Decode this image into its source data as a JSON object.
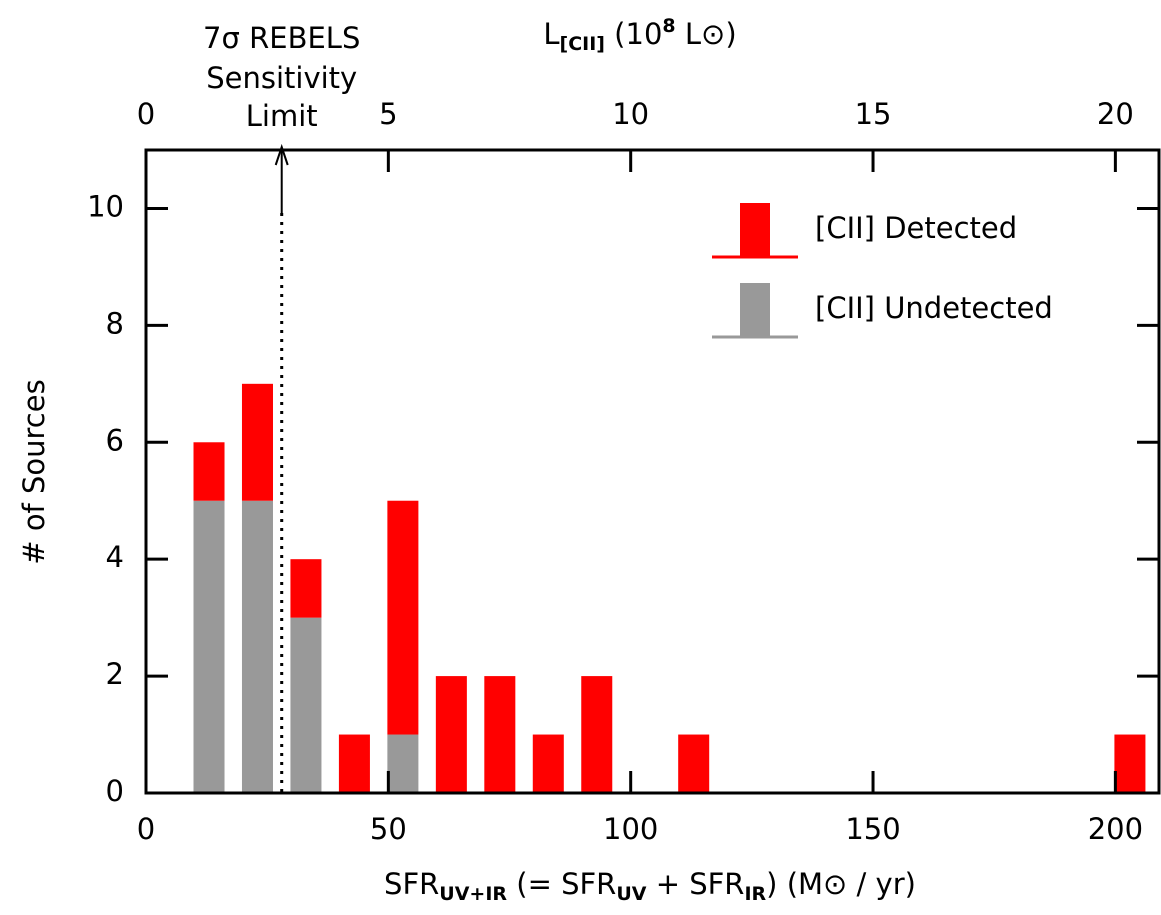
{
  "chart_data": {
    "type": "histogram",
    "bins": [
      8,
      18,
      28,
      38,
      48,
      58,
      68,
      78,
      88,
      98,
      108,
      118,
      128,
      138,
      148,
      158,
      168,
      178,
      188,
      198,
      208
    ],
    "stacked": true,
    "series": [
      {
        "name": "[CII] Detected",
        "color": "#ff0000",
        "values": [
          1,
          2,
          1,
          1,
          4,
          2,
          2,
          1,
          2,
          0,
          1,
          0,
          0,
          0,
          0,
          0,
          0,
          0,
          0,
          1
        ]
      },
      {
        "name": "[CII] Undetected",
        "color": "#999999",
        "values": [
          5,
          5,
          3,
          0,
          1,
          0,
          0,
          0,
          0,
          0,
          0,
          0,
          0,
          0,
          0,
          0,
          0,
          0,
          0,
          0
        ]
      }
    ],
    "xlabel": [
      {
        "text": "SFR"
      },
      {
        "text": "UV+IR",
        "sub": true
      },
      {
        "text": " (= SFR"
      },
      {
        "text": "UV",
        "sub": true
      },
      {
        "text": " + SFR"
      },
      {
        "text": "IR",
        "sub": true
      },
      {
        "text": ") (M⊙ / yr)"
      }
    ],
    "x2label": [
      {
        "text": "L"
      },
      {
        "text": "[CII]",
        "sub": true
      },
      {
        "text": " (10"
      },
      {
        "text": "8",
        "sup": true
      },
      {
        "text": " L⊙)"
      }
    ],
    "ylabel": "# of Sources",
    "xlim": [
      0,
      209
    ],
    "xticks": [
      0,
      50,
      100,
      150,
      200
    ],
    "x2lim": [
      0,
      20.9
    ],
    "x2ticks": [
      0,
      5,
      10,
      15,
      20
    ],
    "ylim": [
      0,
      11
    ],
    "yticks": [
      0,
      2,
      4,
      6,
      8,
      10
    ],
    "legend": "upper right",
    "annotation": {
      "text": [
        "7σ REBELS",
        "Sensitivity",
        "Limit"
      ],
      "x": 28
    }
  }
}
